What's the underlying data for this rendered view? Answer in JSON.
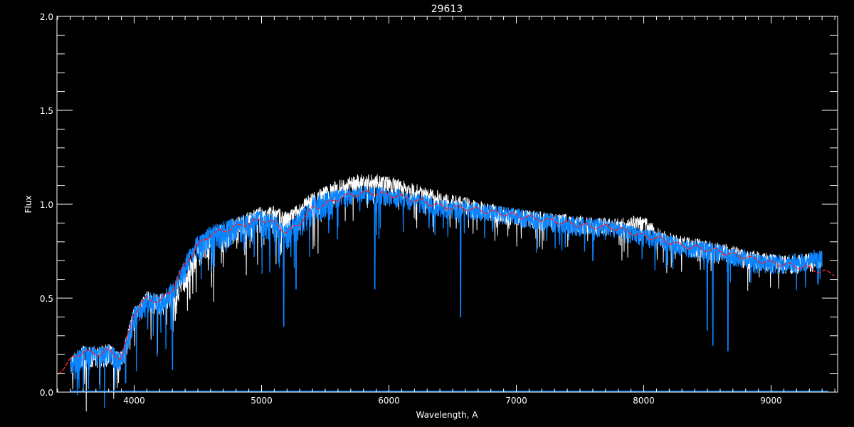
{
  "chart_data": {
    "type": "line",
    "title": "29613",
    "xlabel": "Wavelength, A",
    "ylabel": "Flux",
    "xlim": [
      3394,
      9522
    ],
    "ylim": [
      0,
      2.0
    ],
    "xticks": [
      4000,
      5000,
      6000,
      7000,
      8000,
      9000
    ],
    "xtick_labels": [
      "4000",
      "5000",
      "6000",
      "7000",
      "8000",
      "9000"
    ],
    "yticks": [
      0,
      0.5,
      1.0,
      1.5,
      2.0
    ],
    "ytick_labels": [
      "0.0",
      "0.5",
      "1.0",
      "1.5",
      "2.0"
    ],
    "grid": false,
    "background": "#000000",
    "x": [
      3400,
      3500,
      3600,
      3700,
      3800,
      3900,
      4000,
      4100,
      4200,
      4300,
      4400,
      4500,
      4600,
      4700,
      4800,
      4900,
      5000,
      5100,
      5200,
      5300,
      5400,
      5500,
      5600,
      5700,
      5800,
      5900,
      6000,
      6100,
      6200,
      6300,
      6400,
      6500,
      6600,
      6700,
      6800,
      6900,
      7000,
      7100,
      7200,
      7300,
      7400,
      7500,
      7600,
      7700,
      7800,
      7900,
      8000,
      8100,
      8200,
      8300,
      8400,
      8500,
      8600,
      8700,
      8800,
      8900,
      9000,
      9100,
      9200,
      9300,
      9400,
      9500
    ],
    "series": [
      {
        "color": "#ffffff",
        "values": [
          null,
          0.16,
          0.21,
          0.2,
          0.22,
          0.18,
          0.42,
          0.5,
          0.48,
          0.52,
          0.62,
          0.74,
          0.82,
          0.86,
          0.89,
          0.92,
          0.95,
          0.95,
          0.92,
          0.97,
          1.03,
          1.06,
          1.09,
          1.11,
          1.12,
          1.12,
          1.11,
          1.09,
          1.07,
          1.05,
          1.03,
          1.01,
          1.0,
          0.98,
          0.97,
          0.95,
          0.94,
          0.93,
          0.92,
          0.91,
          0.91,
          0.9,
          0.89,
          0.89,
          0.89,
          0.9,
          0.9,
          0.84,
          0.81,
          0.79,
          0.78,
          0.77,
          0.76,
          0.74,
          0.72,
          0.71,
          0.7,
          0.69,
          0.69,
          0.7,
          0.71,
          null
        ]
      },
      {
        "color": "#0a84ff",
        "values": [
          null,
          0.15,
          0.21,
          0.2,
          0.22,
          0.17,
          0.42,
          0.5,
          0.48,
          0.55,
          0.68,
          0.8,
          0.85,
          0.87,
          0.89,
          0.91,
          0.93,
          0.91,
          0.86,
          0.92,
          1.0,
          1.02,
          1.04,
          1.05,
          1.06,
          1.06,
          1.05,
          1.04,
          1.02,
          1.01,
          0.99,
          0.98,
          0.98,
          0.97,
          0.96,
          0.95,
          0.94,
          0.93,
          0.92,
          0.91,
          0.9,
          0.89,
          0.89,
          0.88,
          0.87,
          0.85,
          0.83,
          0.82,
          0.8,
          0.78,
          0.77,
          0.76,
          0.75,
          0.73,
          0.72,
          0.7,
          0.69,
          0.69,
          0.7,
          0.71,
          0.73,
          null
        ]
      },
      {
        "color": "#ff2020",
        "values": [
          0.1,
          0.17,
          0.22,
          0.2,
          0.22,
          0.18,
          0.42,
          0.5,
          0.48,
          0.55,
          0.68,
          0.78,
          0.84,
          0.86,
          0.88,
          0.9,
          0.92,
          0.9,
          0.85,
          0.9,
          0.98,
          1.0,
          1.03,
          1.05,
          1.06,
          1.06,
          1.05,
          1.04,
          1.02,
          1.01,
          0.99,
          0.98,
          0.98,
          0.97,
          0.96,
          0.95,
          0.94,
          0.93,
          0.92,
          0.91,
          0.9,
          0.89,
          0.88,
          0.88,
          0.87,
          0.85,
          0.83,
          0.82,
          0.8,
          0.78,
          0.77,
          0.76,
          0.75,
          0.73,
          0.72,
          0.7,
          0.69,
          0.68,
          0.67,
          0.66,
          0.64,
          0.63
        ]
      }
    ],
    "absorption_lines": [
      [
        3933,
        0.05
      ],
      [
        4300,
        0.12
      ],
      [
        5175,
        0.35
      ],
      [
        5270,
        0.55
      ],
      [
        5890,
        0.55
      ],
      [
        6563,
        0.4
      ],
      [
        7600,
        0.7
      ],
      [
        8498,
        0.33
      ],
      [
        8542,
        0.25
      ],
      [
        8662,
        0.22
      ]
    ],
    "error_level": 0.005
  }
}
